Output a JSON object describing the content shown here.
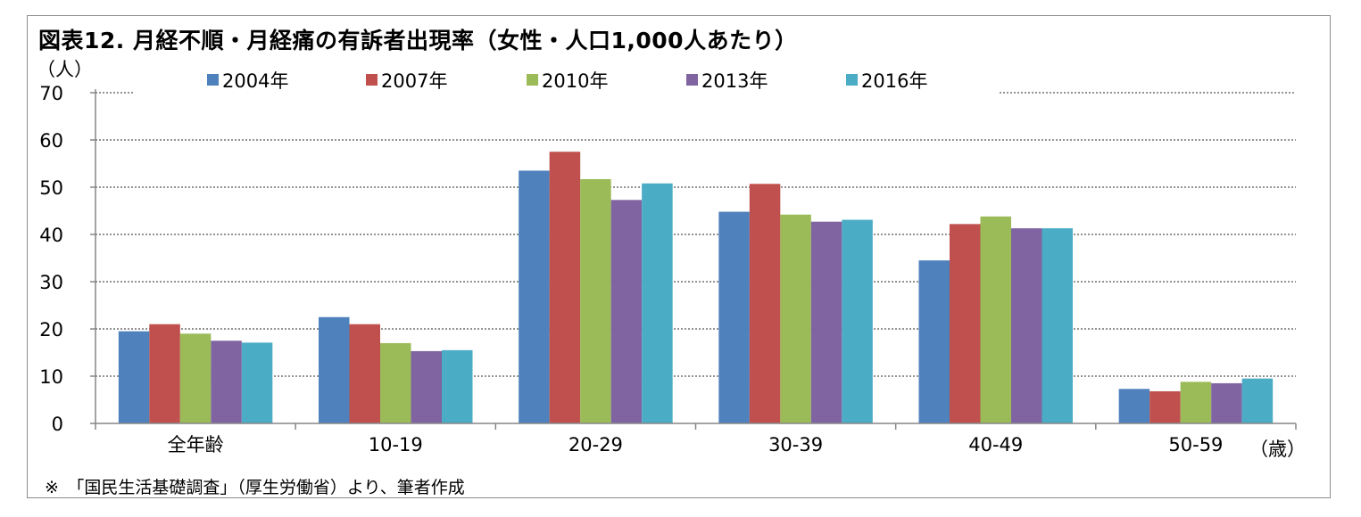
{
  "title": "図表12. 月経不順・月経痛の有訴者出現率（女性・人口1,000人あたり）",
  "y_unit": "（人）",
  "x_unit": "（歳）",
  "footnote": "※　「国民生活基礎調査」（厚生労働省）より、筆者作成",
  "chart_data": {
    "type": "bar",
    "categories": [
      "全年齢",
      "10-19",
      "20-29",
      "30-39",
      "40-49",
      "50-59"
    ],
    "series": [
      {
        "name": "2004年",
        "color": "#4f81bd",
        "values": [
          19.5,
          22.5,
          53.5,
          44.8,
          34.5,
          7.3
        ]
      },
      {
        "name": "2007年",
        "color": "#c0504d",
        "values": [
          21.0,
          21.0,
          57.5,
          50.7,
          42.2,
          6.8
        ]
      },
      {
        "name": "2010年",
        "color": "#9bbb59",
        "values": [
          19.0,
          17.0,
          51.7,
          44.2,
          43.8,
          8.8
        ]
      },
      {
        "name": "2013年",
        "color": "#8064a2",
        "values": [
          17.5,
          15.3,
          47.3,
          42.7,
          41.3,
          8.5
        ]
      },
      {
        "name": "2016年",
        "color": "#4bacc6",
        "values": [
          17.1,
          15.5,
          50.8,
          43.1,
          41.3,
          9.5
        ]
      }
    ],
    "ylim": [
      0,
      70
    ],
    "yticks": [
      0,
      10,
      20,
      30,
      40,
      50,
      60,
      70
    ],
    "grid": "dotted horizontal",
    "legend_position": "top"
  }
}
